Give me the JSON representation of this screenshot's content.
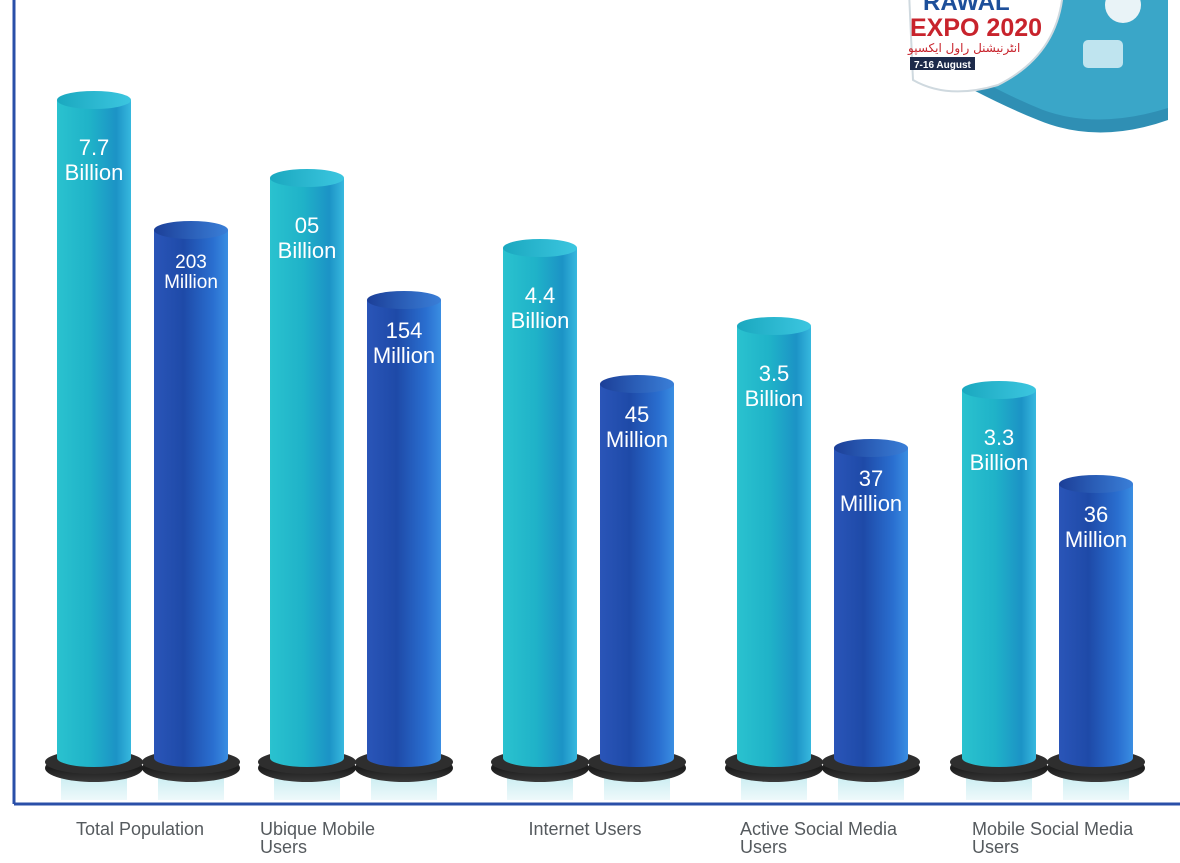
{
  "logo": {
    "line1": "RAWAL",
    "line2": "EXPO 2020",
    "line3": "انٹرنیشنل راول ایکسپو",
    "dates": "7-16 August"
  },
  "colors": {
    "teal_light": "#4fd3e6",
    "teal_mid": "#1fb8c9",
    "teal_dark": "#12a3b6",
    "blue_light": "#3f8fe0",
    "blue_mid": "#2467c8",
    "blue_dark": "#1a3f9c",
    "axis": "#2a4fa8",
    "logo_red": "#c8232c",
    "logo_blue": "#1d4f9a"
  },
  "chart_data": {
    "type": "bar",
    "categories": [
      "Total Population",
      "Ubique Mobile Users",
      "Internet Users",
      "Active Social Media Users",
      "Mobile Social Media Users"
    ],
    "category_lines": [
      [
        "Total Population"
      ],
      [
        "Ubique Mobile",
        "Users"
      ],
      [
        "Internet Users"
      ],
      [
        "Active Social Media",
        "Users"
      ],
      [
        "Mobile Social Media",
        "Users"
      ]
    ],
    "series": [
      {
        "values": [
          7.7,
          5,
          4.4,
          3.5,
          3.3
        ],
        "unit": "Billion",
        "labels": [
          [
            "7.7",
            "Billion"
          ],
          [
            "05",
            "Billion"
          ],
          [
            "4.4",
            "Billion"
          ],
          [
            "3.5",
            "Billion"
          ],
          [
            "3.3",
            "Billion"
          ]
        ]
      },
      {
        "values": [
          203,
          154,
          45,
          37,
          36
        ],
        "unit": "Million",
        "labels": [
          [
            "203",
            "Million"
          ],
          [
            "154",
            "Million"
          ],
          [
            "45",
            "Million"
          ],
          [
            "37",
            "Million"
          ],
          [
            "36",
            "Million"
          ]
        ]
      }
    ],
    "title": "",
    "xlabel": "",
    "ylabel": ""
  }
}
